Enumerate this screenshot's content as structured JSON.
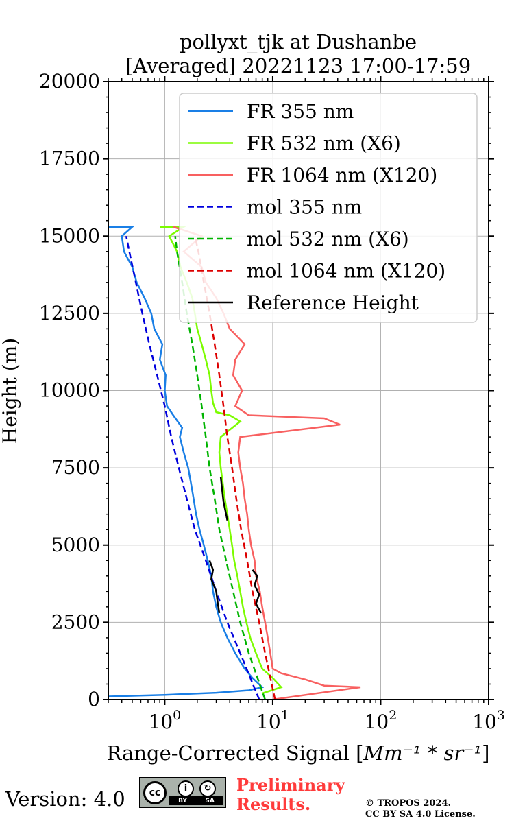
{
  "chart_data": {
    "type": "line",
    "title_line1": "pollyxt_tjk at Dushanbe",
    "title_line2": "[Averaged] 20221123 17:00-17:59",
    "xlabel": "Range-Corrected Signal [",
    "xlabel_unit": "Mm⁻¹ * sr⁻¹",
    "xlabel_close": "]",
    "ylabel": "Height (m)",
    "xscale": "log",
    "xlim": [
      0.3,
      1000
    ],
    "ylim": [
      0,
      20000
    ],
    "grid": true,
    "legend_position": "top-right",
    "yticks": [
      "0",
      "2500",
      "5000",
      "7500",
      "10000",
      "12500",
      "15000",
      "17500",
      "20000"
    ],
    "xticks": [
      {
        "base": "10",
        "exp": "0",
        "value": 1
      },
      {
        "base": "10",
        "exp": "1",
        "value": 10
      },
      {
        "base": "10",
        "exp": "2",
        "value": 100
      },
      {
        "base": "10",
        "exp": "3",
        "value": 1000
      }
    ],
    "series": [
      {
        "name": "FR 355 nm",
        "color": "#1a7fe6",
        "dash": "solid",
        "points": [
          [
            0.3,
            100
          ],
          [
            1,
            150
          ],
          [
            3,
            220
          ],
          [
            6,
            300
          ],
          [
            8,
            400
          ],
          [
            6.5,
            700
          ],
          [
            5.5,
            1000
          ],
          [
            4.5,
            1500
          ],
          [
            3.8,
            2000
          ],
          [
            3.3,
            2500
          ],
          [
            3.0,
            3000
          ],
          [
            2.8,
            3500
          ],
          [
            2.7,
            4000
          ],
          [
            2.5,
            4500
          ],
          [
            2.3,
            5000
          ],
          [
            2.1,
            5500
          ],
          [
            1.95,
            6000
          ],
          [
            1.85,
            6500
          ],
          [
            1.75,
            7000
          ],
          [
            1.65,
            7500
          ],
          [
            1.5,
            8000
          ],
          [
            1.38,
            8500
          ],
          [
            1.45,
            8800
          ],
          [
            1.2,
            9200
          ],
          [
            1.05,
            9500
          ],
          [
            1.0,
            10000
          ],
          [
            1.02,
            10500
          ],
          [
            0.9,
            11000
          ],
          [
            0.95,
            11500
          ],
          [
            0.8,
            12000
          ],
          [
            0.75,
            12500
          ],
          [
            0.65,
            13000
          ],
          [
            0.55,
            13500
          ],
          [
            0.5,
            14000
          ],
          [
            0.42,
            14500
          ],
          [
            0.4,
            15000
          ],
          [
            0.5,
            15300
          ],
          [
            0.3,
            15300
          ]
        ]
      },
      {
        "name": "FR 532 nm (X6)",
        "color": "#7cfc00",
        "dash": "solid",
        "points": [
          [
            8,
            200
          ],
          [
            12,
            400
          ],
          [
            10,
            700
          ],
          [
            8,
            1000
          ],
          [
            7,
            1500
          ],
          [
            6.2,
            2000
          ],
          [
            5.7,
            2500
          ],
          [
            5.3,
            3000
          ],
          [
            5.0,
            3500
          ],
          [
            4.7,
            4000
          ],
          [
            4.4,
            4500
          ],
          [
            4.2,
            5000
          ],
          [
            4.0,
            5500
          ],
          [
            3.8,
            6000
          ],
          [
            3.6,
            6500
          ],
          [
            3.45,
            7000
          ],
          [
            3.3,
            7500
          ],
          [
            3.2,
            8000
          ],
          [
            3.3,
            8500
          ],
          [
            5.0,
            9000
          ],
          [
            4.0,
            9200
          ],
          [
            3.0,
            9300
          ],
          [
            2.8,
            9600
          ],
          [
            2.7,
            10000
          ],
          [
            2.6,
            10500
          ],
          [
            2.4,
            11000
          ],
          [
            2.2,
            11500
          ],
          [
            2.0,
            12000
          ],
          [
            1.9,
            12500
          ],
          [
            1.8,
            13000
          ],
          [
            1.6,
            13500
          ],
          [
            1.4,
            14000
          ],
          [
            1.3,
            14500
          ],
          [
            1.1,
            15000
          ],
          [
            1.5,
            15300
          ],
          [
            0.9,
            15300
          ]
        ]
      },
      {
        "name": "FR 1064 nm (X120)",
        "color": "#f86060",
        "dash": "solid",
        "points": [
          [
            10,
            0
          ],
          [
            65,
            400
          ],
          [
            30,
            450
          ],
          [
            20,
            650
          ],
          [
            12,
            850
          ],
          [
            10,
            1000
          ],
          [
            9.5,
            1500
          ],
          [
            9,
            2000
          ],
          [
            8.5,
            2500
          ],
          [
            8,
            3000
          ],
          [
            7.6,
            3500
          ],
          [
            7,
            4000
          ],
          [
            6.8,
            4500
          ],
          [
            6.3,
            5000
          ],
          [
            6,
            5500
          ],
          [
            5.8,
            6000
          ],
          [
            5.5,
            6500
          ],
          [
            5.3,
            7000
          ],
          [
            5,
            7500
          ],
          [
            4.8,
            8000
          ],
          [
            5,
            8500
          ],
          [
            42,
            8900
          ],
          [
            30,
            9100
          ],
          [
            6,
            9200
          ],
          [
            4.5,
            9500
          ],
          [
            5.2,
            10000
          ],
          [
            4.3,
            10500
          ],
          [
            4.5,
            11000
          ],
          [
            5.5,
            11500
          ],
          [
            4,
            12000
          ],
          [
            3.5,
            12500
          ],
          [
            3.0,
            13000
          ],
          [
            2.4,
            13500
          ],
          [
            2.2,
            14000
          ],
          [
            1.5,
            14500
          ],
          [
            2.2,
            15000
          ],
          [
            1.2,
            15300
          ]
        ]
      },
      {
        "name": "mol 355 nm",
        "color": "#0000dd",
        "dash": "dashed",
        "points": [
          [
            7.5,
            0
          ],
          [
            5,
            1500
          ],
          [
            3.8,
            2500
          ],
          [
            3.0,
            3500
          ],
          [
            2.4,
            4500
          ],
          [
            1.9,
            5500
          ],
          [
            1.6,
            6500
          ],
          [
            1.35,
            7500
          ],
          [
            1.15,
            8500
          ],
          [
            1.0,
            9500
          ],
          [
            0.85,
            10500
          ],
          [
            0.72,
            11500
          ],
          [
            0.62,
            12500
          ],
          [
            0.54,
            13500
          ],
          [
            0.47,
            14500
          ],
          [
            0.44,
            15000
          ]
        ]
      },
      {
        "name": "mol 532 nm (X6)",
        "color": "#00b400",
        "dash": "dashed",
        "points": [
          [
            8.5,
            0
          ],
          [
            6,
            1500
          ],
          [
            5,
            2500
          ],
          [
            4.3,
            3500
          ],
          [
            3.7,
            4500
          ],
          [
            3.2,
            5500
          ],
          [
            2.9,
            6500
          ],
          [
            2.6,
            7500
          ],
          [
            2.4,
            8500
          ],
          [
            2.2,
            9500
          ],
          [
            2.0,
            10500
          ],
          [
            1.8,
            11500
          ],
          [
            1.6,
            12500
          ],
          [
            1.45,
            13500
          ],
          [
            1.3,
            14500
          ],
          [
            1.25,
            15000
          ]
        ]
      },
      {
        "name": "mol 1064 nm (X120)",
        "color": "#dd0000",
        "dash": "dashed",
        "points": [
          [
            10.5,
            0
          ],
          [
            8.5,
            1500
          ],
          [
            7.5,
            2500
          ],
          [
            6.5,
            3500
          ],
          [
            5.8,
            4500
          ],
          [
            5.1,
            5500
          ],
          [
            4.6,
            6500
          ],
          [
            4.2,
            7500
          ],
          [
            3.8,
            8500
          ],
          [
            3.5,
            9500
          ],
          [
            3.2,
            10500
          ],
          [
            2.9,
            11500
          ],
          [
            2.6,
            12500
          ],
          [
            2.3,
            13500
          ],
          [
            2.05,
            14500
          ],
          [
            1.9,
            15000
          ]
        ]
      },
      {
        "name": "Reference Height",
        "color": "#000000",
        "dash": "solid",
        "points": [],
        "segments": [
          [
            [
              2.6,
              4500
            ],
            [
              2.8,
              4200
            ],
            [
              2.7,
              3900
            ],
            [
              3.0,
              3500
            ],
            [
              3.1,
              3100
            ],
            [
              3.2,
              2800
            ]
          ],
          [
            [
              3.3,
              7200
            ],
            [
              3.4,
              6800
            ],
            [
              3.5,
              6400
            ],
            [
              3.7,
              6000
            ],
            [
              3.8,
              5800
            ]
          ],
          [
            [
              6.5,
              4200
            ],
            [
              7.2,
              4000
            ],
            [
              6.8,
              3700
            ],
            [
              7.5,
              3400
            ],
            [
              7.0,
              3100
            ],
            [
              7.8,
              2800
            ]
          ]
        ]
      }
    ]
  },
  "footer": {
    "version": "Version: 4.0",
    "cc_label": "cc",
    "cc_by": "BY",
    "cc_sa": "SA",
    "prelim_line1": "Preliminary",
    "prelim_line2": "Results.",
    "copyright_line1": "© TROPOS 2024.",
    "copyright_line2": "CC BY SA 4.0 License."
  }
}
